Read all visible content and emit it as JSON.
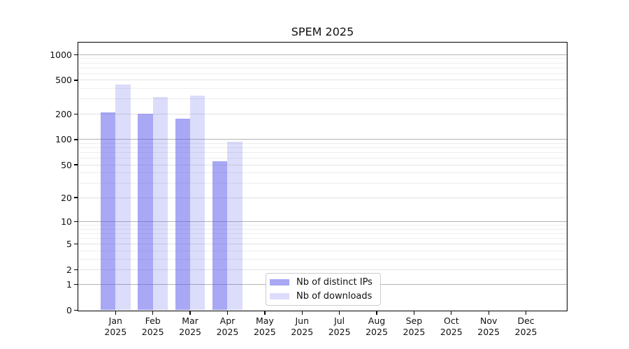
{
  "title": "SPEM 2025",
  "chart_data": {
    "type": "bar",
    "title": "SPEM 2025",
    "year_label": "2025",
    "categories": [
      "Jan",
      "Feb",
      "Mar",
      "Apr",
      "May",
      "Jun",
      "Jul",
      "Aug",
      "Sep",
      "Oct",
      "Nov",
      "Dec"
    ],
    "series": [
      {
        "name": "Nb of distinct IPs",
        "color": "rgba(82,82,235,0.5)",
        "values": [
          210,
          200,
          175,
          55,
          0,
          0,
          0,
          0,
          0,
          0,
          0,
          0
        ]
      },
      {
        "name": "Nb of downloads",
        "color": "rgba(82,82,235,0.2)",
        "values": [
          450,
          320,
          330,
          95,
          0,
          0,
          0,
          0,
          0,
          0,
          0,
          0
        ]
      }
    ],
    "xlabel": "",
    "ylabel": "",
    "y_axis": {
      "scale": "log10(value+1), zero at baseline",
      "ticks": [
        0,
        1,
        2,
        5,
        10,
        20,
        50,
        100,
        200,
        500,
        1000
      ],
      "major_gridlines": [
        1,
        10,
        100,
        1000
      ],
      "labeled_minor_gridlines": [
        2,
        5,
        20,
        50,
        200,
        500
      ],
      "unlabeled_minor_gridlines": [
        3,
        4,
        6,
        7,
        8,
        9,
        30,
        40,
        60,
        70,
        80,
        90,
        300,
        400,
        600,
        700,
        800,
        900
      ],
      "ylim": [
        0,
        1360
      ]
    },
    "grid": true,
    "legend_position": "lower center (inside plot)"
  },
  "legend": {
    "items": [
      "Nb of distinct IPs",
      "Nb of downloads"
    ]
  },
  "colors": {
    "bar_distinct_ips": "rgba(82,82,235,0.5)",
    "bar_downloads": "rgba(82,82,235,0.2)",
    "major_grid": "#b4b4b4",
    "labeled_minor_grid": "#e2e2e2",
    "minor_grid": "#ededed",
    "spine": "#000000",
    "text": "#111111",
    "legend_border": "#cccccc",
    "legend_background": "rgba(255,255,255,0.95)"
  }
}
